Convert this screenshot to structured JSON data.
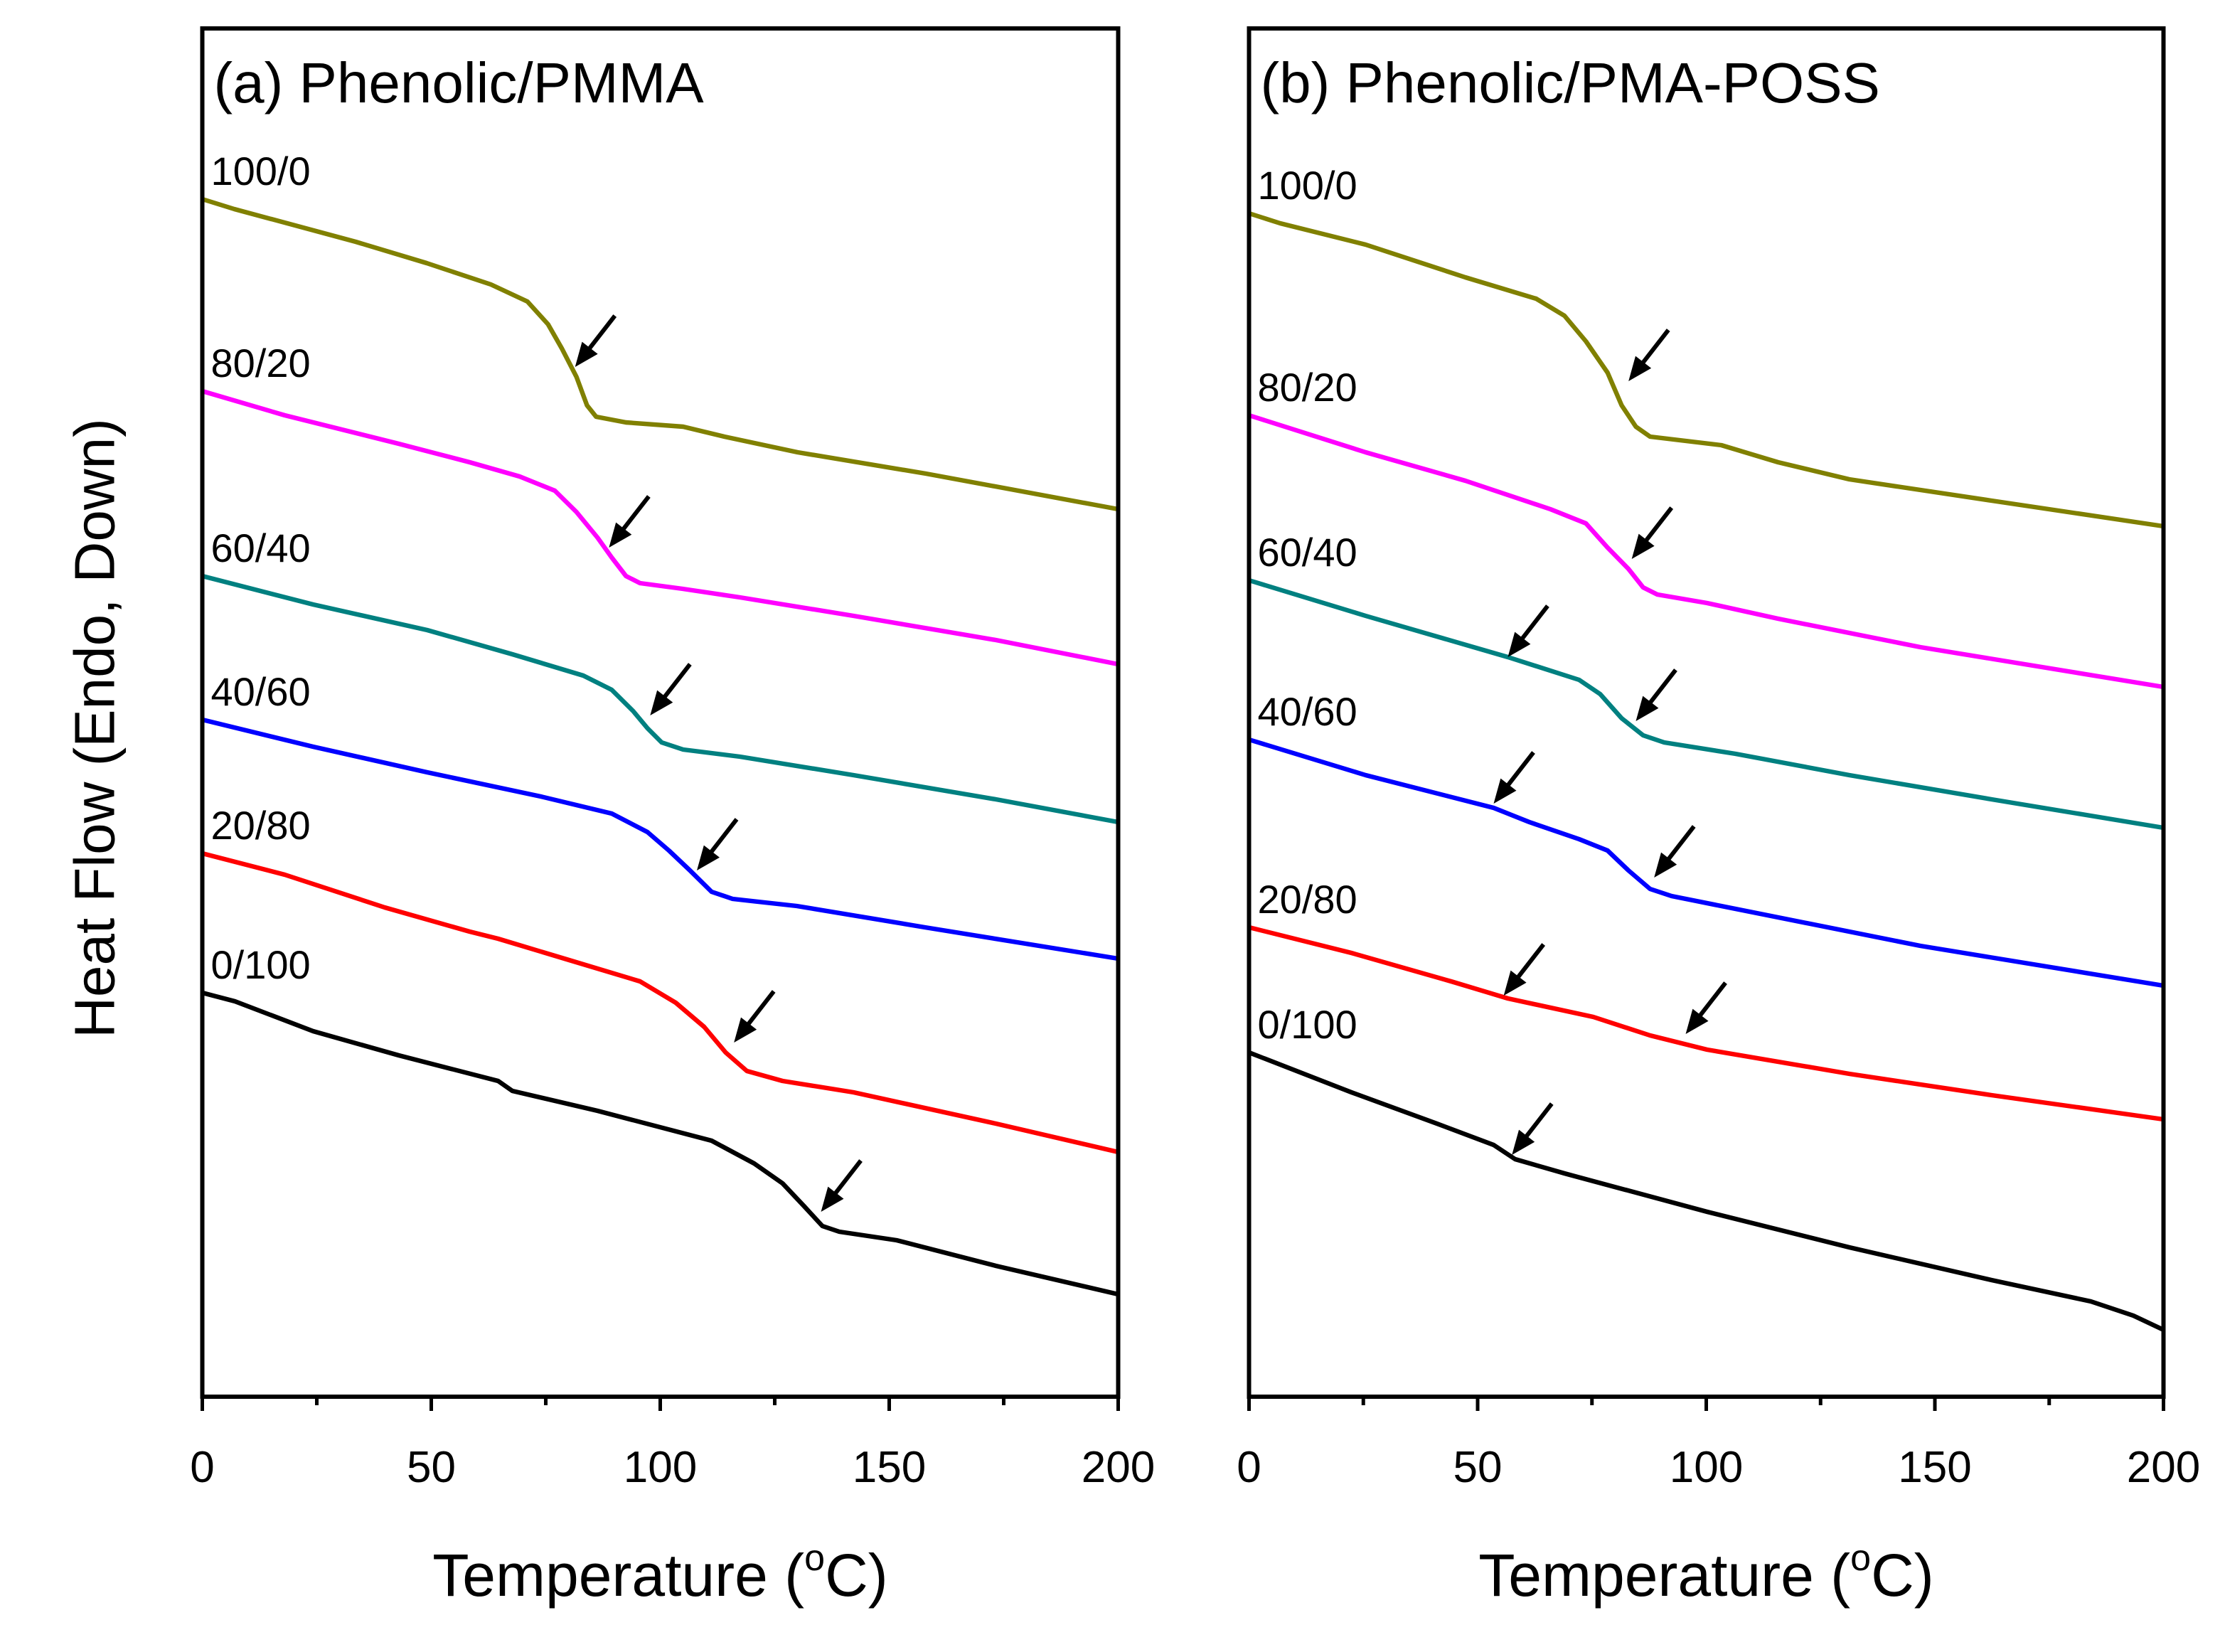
{
  "chart_data": [
    {
      "type": "line",
      "title": "(a) Phenolic/PMMA",
      "xlabel": "Temperature (oC)",
      "ylabel": "Heat Flow (Endo, Down)",
      "xlim": [
        0,
        200
      ],
      "ylim": [
        0,
        96.2
      ],
      "xticks": [
        0,
        50,
        100,
        150,
        200
      ],
      "xtick_labels": [
        "0",
        "50",
        "100",
        "150",
        "200"
      ],
      "minor_xticks": [
        25,
        75,
        125,
        175
      ],
      "grid": false,
      "legend": "curve labels at left",
      "series": [
        {
          "name": "100/0",
          "color": "#808000",
          "x": [
            0,
            7,
            33.5,
            49,
            63,
            71,
            75.5,
            78.5,
            81.7,
            84,
            86,
            92.5,
            105,
            114,
            130,
            158,
            200
          ],
          "y": [
            84.2,
            83.5,
            81.2,
            79.7,
            78.2,
            77,
            75.4,
            73.7,
            71.7,
            69.7,
            68.9,
            68.5,
            68.2,
            67.5,
            66.4,
            64.9,
            62.4
          ],
          "arrows": [
            [
              81.4,
              72.4
            ]
          ]
        },
        {
          "name": "80/20",
          "color": "#ff00ff",
          "x": [
            0,
            18,
            42.9,
            58.4,
            69.3,
            77,
            81.7,
            86.3,
            89.4,
            92.5,
            95.6,
            104.9,
            117.4,
            142.2,
            173.3,
            200
          ],
          "y": [
            70.7,
            69,
            67,
            65.7,
            64.7,
            63.7,
            62.2,
            60.4,
            59,
            57.7,
            57.2,
            56.8,
            56.2,
            54.9,
            53.2,
            51.5
          ],
          "arrows": [
            [
              88.8,
              59.7
            ]
          ]
        },
        {
          "name": "60/40",
          "color": "#008080",
          "x": [
            0,
            24.2,
            49.1,
            67.7,
            83.2,
            89.4,
            94.1,
            97.2,
            100.3,
            105,
            117.4,
            142.2,
            173.3,
            200
          ],
          "y": [
            57.7,
            55.7,
            53.9,
            52.2,
            50.7,
            49.7,
            48.2,
            47,
            46,
            45.5,
            45,
            43.7,
            42,
            40.4
          ],
          "arrows": [
            [
              97.8,
              47.9
            ]
          ]
        },
        {
          "name": "40/60",
          "color": "#0000ff",
          "x": [
            0,
            24.2,
            49.1,
            73.9,
            89.4,
            97.2,
            101.9,
            106.5,
            111.2,
            115.8,
            129.8,
            157.8,
            200
          ],
          "y": [
            47.6,
            45.7,
            43.9,
            42.2,
            41,
            39.7,
            38.4,
            37,
            35.5,
            35,
            34.5,
            33,
            30.8
          ],
          "arrows": [
            [
              108,
              37
            ]
          ]
        },
        {
          "name": "20/80",
          "color": "#ff0000",
          "x": [
            0,
            18,
            39.8,
            58.4,
            64.6,
            80.1,
            95.6,
            103.4,
            109.6,
            114.3,
            118.9,
            126.7,
            142.2,
            173.3,
            200
          ],
          "y": [
            38.2,
            36.7,
            34.4,
            32.7,
            32.2,
            30.7,
            29.2,
            27.7,
            26,
            24.2,
            22.9,
            22.2,
            21.4,
            19.2,
            17.2
          ],
          "arrows": [
            [
              116.1,
              24.9
            ]
          ]
        },
        {
          "name": "0/100",
          "color": "#000000",
          "x": [
            0,
            7.1,
            24.2,
            42.9,
            64.6,
            67.7,
            86.3,
            111.2,
            120.5,
            126.7,
            131.4,
            135.4,
            139.1,
            151.6,
            173.3,
            200
          ],
          "y": [
            28.4,
            27.8,
            25.7,
            24,
            22.2,
            21.5,
            20.1,
            18,
            16.4,
            15,
            13.4,
            12,
            11.6,
            11,
            9.2,
            7.2
          ],
          "arrows": [
            [
              135.1,
              13
            ]
          ]
        }
      ]
    },
    {
      "type": "line",
      "title": "(b) Phenolic/PMA-POSS",
      "xlabel": "Temperature (oC)",
      "ylabel": "",
      "xlim": [
        0,
        200
      ],
      "ylim": [
        0,
        96.2
      ],
      "xticks": [
        0,
        50,
        100,
        150,
        200
      ],
      "xtick_labels": [
        "0",
        "50",
        "100",
        "150",
        "200"
      ],
      "minor_xticks": [
        25,
        75,
        125,
        175
      ],
      "grid": false,
      "legend": "curve labels at left",
      "series": [
        {
          "name": "100/0",
          "color": "#808000",
          "x": [
            0,
            6.8,
            25.5,
            47.3,
            62.8,
            69,
            73.7,
            78.4,
            81.5,
            84.6,
            87.7,
            103.3,
            115.7,
            131.3,
            162.4,
            200
          ],
          "y": [
            83.2,
            82.5,
            81,
            78.7,
            77.2,
            76,
            74.2,
            72,
            69.7,
            68.2,
            67.5,
            66.9,
            65.7,
            64.5,
            63,
            61.2
          ],
          "arrows": [
            [
              83,
              71.4
            ]
          ]
        },
        {
          "name": "80/20",
          "color": "#ff00ff",
          "x": [
            0,
            25.5,
            47.3,
            65.9,
            73.7,
            78.4,
            83,
            86.2,
            89.3,
            100.2,
            115.7,
            146.8,
            200
          ],
          "y": [
            69,
            66.4,
            64.4,
            62.4,
            61.4,
            59.7,
            58.2,
            56.9,
            56.4,
            55.8,
            54.7,
            52.7,
            49.9
          ],
          "arrows": [
            [
              83.7,
              58.9
            ]
          ]
        },
        {
          "name": "60/40",
          "color": "#008080",
          "x": [
            0,
            25.5,
            56.6,
            72.2,
            76.8,
            81.5,
            86.2,
            90.8,
            106.4,
            131.3,
            162.4,
            200
          ],
          "y": [
            57.4,
            54.9,
            52,
            50.4,
            49.4,
            47.7,
            46.5,
            46,
            45.2,
            43.7,
            42,
            40
          ],
          "arrows": [
            [
              56.6,
              52
            ],
            [
              84.6,
              47.5
            ]
          ]
        },
        {
          "name": "40/60",
          "color": "#0000ff",
          "x": [
            0,
            25.5,
            53.5,
            61.3,
            72.2,
            78.4,
            83,
            87.7,
            92.4,
            115.7,
            146.8,
            200
          ],
          "y": [
            46.2,
            43.7,
            41.4,
            40.4,
            39.2,
            38.4,
            37,
            35.7,
            35.2,
            33.7,
            31.7,
            28.9
          ],
          "arrows": [
            [
              53.5,
              41.7
            ],
            [
              88.6,
              36.5
            ]
          ]
        },
        {
          "name": "20/80",
          "color": "#ff0000",
          "x": [
            0,
            22.4,
            44.2,
            56.6,
            75.3,
            87.7,
            100.2,
            131.3,
            162.4,
            200
          ],
          "y": [
            33,
            31.2,
            29.2,
            28,
            26.7,
            25.4,
            24.4,
            22.7,
            21.2,
            19.5
          ],
          "arrows": [
            [
              55.7,
              28.2
            ],
            [
              95.5,
              25.5
            ]
          ]
        },
        {
          "name": "0/100",
          "color": "#000000",
          "x": [
            0,
            22.4,
            41.1,
            53.5,
            58.2,
            69,
            100.2,
            131.3,
            162.4,
            184.1,
            193.4,
            200
          ],
          "y": [
            24.2,
            21.4,
            19.2,
            17.7,
            16.7,
            15.7,
            13,
            10.5,
            8.2,
            6.7,
            5.7,
            4.7
          ],
          "arrows": [
            [
              57.5,
              17
            ]
          ]
        }
      ]
    }
  ]
}
